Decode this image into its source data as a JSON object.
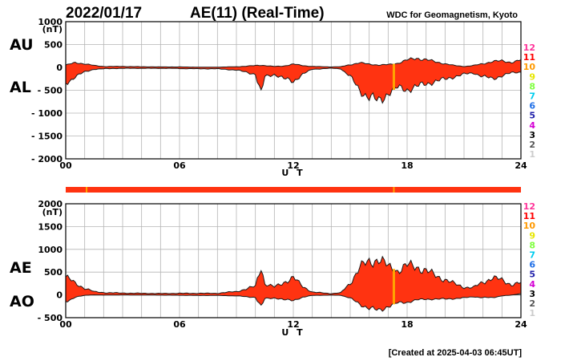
{
  "header": {
    "date": "2022/01/17",
    "title": "AE(11) (Real-Time)",
    "source": "WDC for Geomagnetism, Kyoto",
    "created": "[Created at 2025-04-03 06:45UT]"
  },
  "stations": {
    "labels": [
      "12",
      "11",
      "10",
      "9",
      "8",
      "7",
      "6",
      "5",
      "4",
      "3",
      "2",
      "1"
    ],
    "colors": [
      "#ff3399",
      "#ff0000",
      "#ff9900",
      "#e6e600",
      "#80ff40",
      "#00ccee",
      "#1e6ee6",
      "#2222aa",
      "#d400d4",
      "#000000",
      "#555555",
      "#cccccc"
    ]
  },
  "chart_data": [
    {
      "type": "area",
      "panel": "AU/AL",
      "unit_label": "(nT)",
      "xlabel": "U T",
      "side_labels": [
        "AU",
        "AL"
      ],
      "xlim": [
        0,
        24
      ],
      "ylim": [
        -2000,
        1000
      ],
      "x_ticks": [
        0,
        6,
        12,
        18,
        24
      ],
      "x_tick_labels": [
        "00",
        "06",
        "12",
        "18",
        "24"
      ],
      "y_ticks": [
        1000,
        500,
        0,
        -500,
        -1000,
        -1500,
        -2000
      ],
      "y_tick_labels": [
        "1000",
        "500",
        "0",
        "- 500",
        "- 1000",
        "- 1500",
        "- 2000"
      ],
      "grid": true,
      "fill_color": "#ff3311",
      "highlight": {
        "x": 17.3,
        "color": "#ffa500"
      },
      "series": [
        {
          "name": "AU",
          "x": [
            0,
            0.5,
            1,
            1.5,
            2,
            3,
            4,
            5,
            6,
            7,
            8,
            9,
            9.5,
            10,
            10.3,
            10.5,
            11,
            11.5,
            12,
            12.5,
            13,
            13.5,
            14,
            14.5,
            15,
            15.5,
            16,
            16.5,
            17,
            17.5,
            18,
            18.5,
            19,
            19.5,
            20,
            20.5,
            21,
            21.5,
            22,
            22.5,
            23,
            23.5,
            24
          ],
          "values": [
            50,
            100,
            80,
            40,
            20,
            20,
            15,
            10,
            10,
            5,
            5,
            15,
            25,
            40,
            50,
            40,
            20,
            30,
            70,
            40,
            20,
            15,
            10,
            15,
            60,
            100,
            70,
            50,
            60,
            90,
            160,
            200,
            170,
            120,
            80,
            40,
            20,
            40,
            80,
            130,
            140,
            110,
            160
          ]
        },
        {
          "name": "AL",
          "x": [
            0,
            0.5,
            1,
            1.5,
            2,
            3,
            4,
            5,
            6,
            7,
            8,
            9,
            9.5,
            10,
            10.3,
            10.5,
            11,
            11.5,
            12,
            12.5,
            13,
            13.5,
            14,
            14.5,
            15,
            15.5,
            16,
            16.5,
            17,
            17.5,
            18,
            18.5,
            19,
            19.5,
            20,
            20.5,
            21,
            21.5,
            22,
            22.5,
            23,
            23.5,
            24
          ],
          "values": [
            -350,
            -200,
            -100,
            -40,
            -30,
            -20,
            -20,
            -20,
            -25,
            -30,
            -30,
            -60,
            -100,
            -150,
            -600,
            -200,
            -150,
            -250,
            -300,
            -150,
            -40,
            -30,
            -20,
            -30,
            -200,
            -500,
            -650,
            -750,
            -550,
            -450,
            -480,
            -420,
            -360,
            -300,
            -260,
            -200,
            -150,
            -120,
            -200,
            -250,
            -180,
            -120,
            -100
          ]
        }
      ]
    },
    {
      "type": "area",
      "panel": "AE/AO",
      "unit_label": "(nT)",
      "xlabel": "U T",
      "side_labels": [
        "AE",
        "AO"
      ],
      "xlim": [
        0,
        24
      ],
      "ylim": [
        -500,
        2000
      ],
      "x_ticks": [
        0,
        6,
        12,
        18,
        24
      ],
      "x_tick_labels": [
        "00",
        "06",
        "12",
        "18",
        "24"
      ],
      "y_ticks": [
        2000,
        1500,
        1000,
        500,
        0,
        -500
      ],
      "y_tick_labels": [
        "2000",
        "1500",
        "1000",
        "500",
        "0",
        "- 500"
      ],
      "grid": true,
      "fill_color": "#ff3311",
      "highlight": {
        "x": 17.3,
        "color": "#ffa500"
      },
      "series": [
        {
          "name": "AE",
          "x": [
            0,
            0.5,
            1,
            1.5,
            2,
            3,
            4,
            5,
            6,
            7,
            8,
            9,
            9.5,
            10,
            10.3,
            10.5,
            11,
            11.5,
            12,
            12.5,
            13,
            13.5,
            14,
            14.5,
            15,
            15.5,
            16,
            16.5,
            17,
            17.5,
            18,
            18.5,
            19,
            19.5,
            20,
            20.5,
            21,
            21.5,
            22,
            22.5,
            23,
            23.5,
            24
          ],
          "values": [
            400,
            250,
            150,
            70,
            50,
            40,
            35,
            30,
            35,
            35,
            35,
            75,
            125,
            190,
            650,
            240,
            170,
            280,
            370,
            190,
            60,
            45,
            30,
            45,
            260,
            600,
            720,
            800,
            610,
            540,
            640,
            620,
            530,
            420,
            340,
            240,
            170,
            160,
            280,
            380,
            320,
            230,
            260
          ]
        },
        {
          "name": "AO",
          "x": [
            0,
            0.5,
            1,
            1.5,
            2,
            3,
            4,
            5,
            6,
            7,
            8,
            9,
            9.5,
            10,
            10.3,
            10.5,
            11,
            11.5,
            12,
            12.5,
            13,
            13.5,
            14,
            14.5,
            15,
            15.5,
            16,
            16.5,
            17,
            17.5,
            18,
            18.5,
            19,
            19.5,
            20,
            20.5,
            21,
            21.5,
            22,
            22.5,
            23,
            23.5,
            24
          ],
          "values": [
            -150,
            -50,
            -10,
            0,
            -5,
            0,
            -3,
            -5,
            -8,
            -12,
            -12,
            -22,
            -38,
            -55,
            -275,
            -80,
            -65,
            -110,
            -115,
            -55,
            -10,
            -8,
            -5,
            -8,
            -70,
            -200,
            -290,
            -350,
            -245,
            -180,
            -160,
            -110,
            -95,
            -90,
            -90,
            -80,
            -65,
            -40,
            -60,
            -60,
            -20,
            -5,
            30
          ]
        }
      ]
    }
  ]
}
